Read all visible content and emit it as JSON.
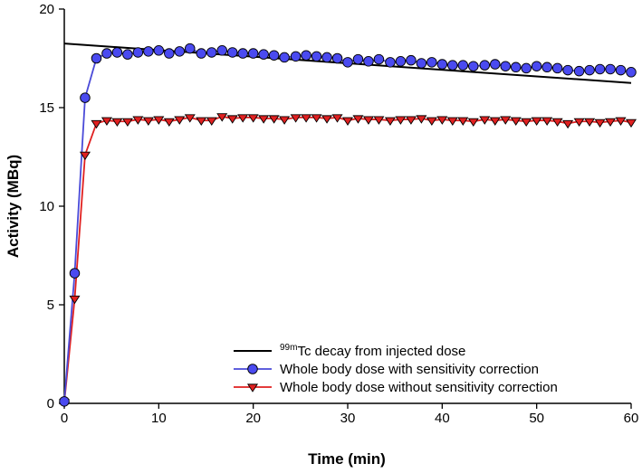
{
  "chart_data": {
    "type": "line",
    "xlabel": "Time (min)",
    "ylabel": "Activity (MBq)",
    "xlim": [
      0,
      60
    ],
    "ylim": [
      0,
      20
    ],
    "xticks": [
      0,
      10,
      20,
      30,
      40,
      50,
      60
    ],
    "yticks": [
      0,
      5,
      10,
      15,
      20
    ],
    "legend_position": "bottom-right",
    "colors": {
      "decay": "#000000",
      "with_correction_line": "#4a4ad8",
      "with_correction_marker": "#4a4af0",
      "without_correction_line": "#e02020",
      "without_correction_marker": "#e02020"
    },
    "series": [
      {
        "name": "decay",
        "label_sup": "99m",
        "label_main": "Tc decay from injected dose",
        "marker": "none",
        "x": [
          0,
          60
        ],
        "y": [
          18.25,
          16.25
        ]
      },
      {
        "name": "with",
        "label": "Whole body dose with sensitivity correction",
        "marker": "circle",
        "x": [
          0,
          1.1,
          2.2,
          3.4,
          4.5,
          5.6,
          6.7,
          7.8,
          8.9,
          10.0,
          11.1,
          12.2,
          13.3,
          14.5,
          15.6,
          16.7,
          17.8,
          18.9,
          20.0,
          21.1,
          22.2,
          23.3,
          24.5,
          25.6,
          26.7,
          27.8,
          28.9,
          30.0,
          31.1,
          32.2,
          33.3,
          34.5,
          35.6,
          36.7,
          37.8,
          38.9,
          40.0,
          41.1,
          42.2,
          43.3,
          44.5,
          45.6,
          46.7,
          47.8,
          48.9,
          50.0,
          51.1,
          52.2,
          53.3,
          54.5,
          55.6,
          56.7,
          57.8,
          58.9,
          60.0
        ],
        "y": [
          0.1,
          6.6,
          15.5,
          17.5,
          17.75,
          17.8,
          17.7,
          17.8,
          17.85,
          17.9,
          17.75,
          17.85,
          18.0,
          17.75,
          17.8,
          17.9,
          17.8,
          17.75,
          17.75,
          17.7,
          17.65,
          17.55,
          17.6,
          17.65,
          17.6,
          17.55,
          17.5,
          17.3,
          17.45,
          17.35,
          17.45,
          17.3,
          17.35,
          17.4,
          17.25,
          17.3,
          17.2,
          17.15,
          17.15,
          17.1,
          17.15,
          17.2,
          17.1,
          17.05,
          17.0,
          17.1,
          17.05,
          17.0,
          16.9,
          16.85,
          16.9,
          16.95,
          16.95,
          16.9,
          16.8
        ]
      },
      {
        "name": "without",
        "label": "Whole body dose without sensitivity correction",
        "marker": "triangle-down",
        "x": [
          0,
          1.1,
          2.2,
          3.4,
          4.5,
          5.6,
          6.7,
          7.8,
          8.9,
          10.0,
          11.1,
          12.2,
          13.3,
          14.5,
          15.6,
          16.7,
          17.8,
          18.9,
          20.0,
          21.1,
          22.2,
          23.3,
          24.5,
          25.6,
          26.7,
          27.8,
          28.9,
          30.0,
          31.1,
          32.2,
          33.3,
          34.5,
          35.6,
          36.7,
          37.8,
          38.9,
          40.0,
          41.1,
          42.2,
          43.3,
          44.5,
          45.6,
          46.7,
          47.8,
          48.9,
          50.0,
          51.1,
          52.2,
          53.3,
          54.5,
          55.6,
          56.7,
          57.8,
          58.9,
          60.0
        ],
        "y": [
          0.05,
          5.3,
          12.6,
          14.2,
          14.35,
          14.3,
          14.3,
          14.4,
          14.35,
          14.4,
          14.3,
          14.4,
          14.5,
          14.35,
          14.35,
          14.55,
          14.45,
          14.5,
          14.5,
          14.45,
          14.45,
          14.4,
          14.5,
          14.5,
          14.5,
          14.45,
          14.5,
          14.35,
          14.45,
          14.4,
          14.4,
          14.35,
          14.4,
          14.4,
          14.45,
          14.35,
          14.4,
          14.35,
          14.35,
          14.3,
          14.4,
          14.35,
          14.4,
          14.35,
          14.3,
          14.35,
          14.35,
          14.3,
          14.2,
          14.3,
          14.3,
          14.25,
          14.3,
          14.35,
          14.25
        ]
      }
    ]
  }
}
